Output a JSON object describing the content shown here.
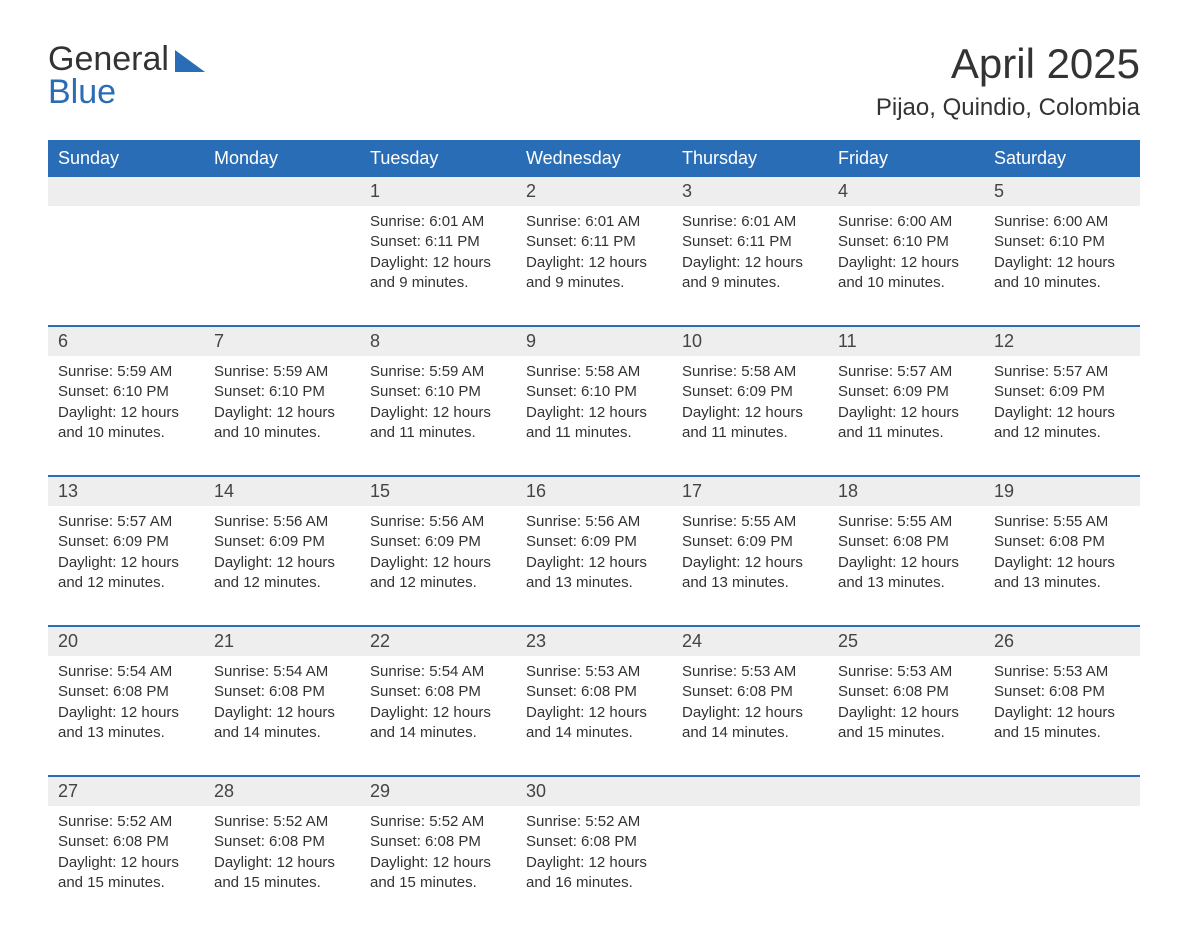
{
  "brand": {
    "word1": "General",
    "word2": "Blue",
    "accent_color": "#2a6db7"
  },
  "title": "April 2025",
  "location": "Pijao, Quindio, Colombia",
  "header_bg": "#2a6db7",
  "header_fg": "#ffffff",
  "daynum_bg": "#eeeeee",
  "week_border_color": "#2a6db7",
  "text_color": "#333333",
  "page_bg": "#ffffff",
  "day_labels": [
    "Sunday",
    "Monday",
    "Tuesday",
    "Wednesday",
    "Thursday",
    "Friday",
    "Saturday"
  ],
  "weeks": [
    {
      "days": [
        {
          "num": "",
          "sunrise": "",
          "sunset": "",
          "daylight1": "",
          "daylight2": ""
        },
        {
          "num": "",
          "sunrise": "",
          "sunset": "",
          "daylight1": "",
          "daylight2": ""
        },
        {
          "num": "1",
          "sunrise": "Sunrise: 6:01 AM",
          "sunset": "Sunset: 6:11 PM",
          "daylight1": "Daylight: 12 hours",
          "daylight2": "and 9 minutes."
        },
        {
          "num": "2",
          "sunrise": "Sunrise: 6:01 AM",
          "sunset": "Sunset: 6:11 PM",
          "daylight1": "Daylight: 12 hours",
          "daylight2": "and 9 minutes."
        },
        {
          "num": "3",
          "sunrise": "Sunrise: 6:01 AM",
          "sunset": "Sunset: 6:11 PM",
          "daylight1": "Daylight: 12 hours",
          "daylight2": "and 9 minutes."
        },
        {
          "num": "4",
          "sunrise": "Sunrise: 6:00 AM",
          "sunset": "Sunset: 6:10 PM",
          "daylight1": "Daylight: 12 hours",
          "daylight2": "and 10 minutes."
        },
        {
          "num": "5",
          "sunrise": "Sunrise: 6:00 AM",
          "sunset": "Sunset: 6:10 PM",
          "daylight1": "Daylight: 12 hours",
          "daylight2": "and 10 minutes."
        }
      ]
    },
    {
      "days": [
        {
          "num": "6",
          "sunrise": "Sunrise: 5:59 AM",
          "sunset": "Sunset: 6:10 PM",
          "daylight1": "Daylight: 12 hours",
          "daylight2": "and 10 minutes."
        },
        {
          "num": "7",
          "sunrise": "Sunrise: 5:59 AM",
          "sunset": "Sunset: 6:10 PM",
          "daylight1": "Daylight: 12 hours",
          "daylight2": "and 10 minutes."
        },
        {
          "num": "8",
          "sunrise": "Sunrise: 5:59 AM",
          "sunset": "Sunset: 6:10 PM",
          "daylight1": "Daylight: 12 hours",
          "daylight2": "and 11 minutes."
        },
        {
          "num": "9",
          "sunrise": "Sunrise: 5:58 AM",
          "sunset": "Sunset: 6:10 PM",
          "daylight1": "Daylight: 12 hours",
          "daylight2": "and 11 minutes."
        },
        {
          "num": "10",
          "sunrise": "Sunrise: 5:58 AM",
          "sunset": "Sunset: 6:09 PM",
          "daylight1": "Daylight: 12 hours",
          "daylight2": "and 11 minutes."
        },
        {
          "num": "11",
          "sunrise": "Sunrise: 5:57 AM",
          "sunset": "Sunset: 6:09 PM",
          "daylight1": "Daylight: 12 hours",
          "daylight2": "and 11 minutes."
        },
        {
          "num": "12",
          "sunrise": "Sunrise: 5:57 AM",
          "sunset": "Sunset: 6:09 PM",
          "daylight1": "Daylight: 12 hours",
          "daylight2": "and 12 minutes."
        }
      ]
    },
    {
      "days": [
        {
          "num": "13",
          "sunrise": "Sunrise: 5:57 AM",
          "sunset": "Sunset: 6:09 PM",
          "daylight1": "Daylight: 12 hours",
          "daylight2": "and 12 minutes."
        },
        {
          "num": "14",
          "sunrise": "Sunrise: 5:56 AM",
          "sunset": "Sunset: 6:09 PM",
          "daylight1": "Daylight: 12 hours",
          "daylight2": "and 12 minutes."
        },
        {
          "num": "15",
          "sunrise": "Sunrise: 5:56 AM",
          "sunset": "Sunset: 6:09 PM",
          "daylight1": "Daylight: 12 hours",
          "daylight2": "and 12 minutes."
        },
        {
          "num": "16",
          "sunrise": "Sunrise: 5:56 AM",
          "sunset": "Sunset: 6:09 PM",
          "daylight1": "Daylight: 12 hours",
          "daylight2": "and 13 minutes."
        },
        {
          "num": "17",
          "sunrise": "Sunrise: 5:55 AM",
          "sunset": "Sunset: 6:09 PM",
          "daylight1": "Daylight: 12 hours",
          "daylight2": "and 13 minutes."
        },
        {
          "num": "18",
          "sunrise": "Sunrise: 5:55 AM",
          "sunset": "Sunset: 6:08 PM",
          "daylight1": "Daylight: 12 hours",
          "daylight2": "and 13 minutes."
        },
        {
          "num": "19",
          "sunrise": "Sunrise: 5:55 AM",
          "sunset": "Sunset: 6:08 PM",
          "daylight1": "Daylight: 12 hours",
          "daylight2": "and 13 minutes."
        }
      ]
    },
    {
      "days": [
        {
          "num": "20",
          "sunrise": "Sunrise: 5:54 AM",
          "sunset": "Sunset: 6:08 PM",
          "daylight1": "Daylight: 12 hours",
          "daylight2": "and 13 minutes."
        },
        {
          "num": "21",
          "sunrise": "Sunrise: 5:54 AM",
          "sunset": "Sunset: 6:08 PM",
          "daylight1": "Daylight: 12 hours",
          "daylight2": "and 14 minutes."
        },
        {
          "num": "22",
          "sunrise": "Sunrise: 5:54 AM",
          "sunset": "Sunset: 6:08 PM",
          "daylight1": "Daylight: 12 hours",
          "daylight2": "and 14 minutes."
        },
        {
          "num": "23",
          "sunrise": "Sunrise: 5:53 AM",
          "sunset": "Sunset: 6:08 PM",
          "daylight1": "Daylight: 12 hours",
          "daylight2": "and 14 minutes."
        },
        {
          "num": "24",
          "sunrise": "Sunrise: 5:53 AM",
          "sunset": "Sunset: 6:08 PM",
          "daylight1": "Daylight: 12 hours",
          "daylight2": "and 14 minutes."
        },
        {
          "num": "25",
          "sunrise": "Sunrise: 5:53 AM",
          "sunset": "Sunset: 6:08 PM",
          "daylight1": "Daylight: 12 hours",
          "daylight2": "and 15 minutes."
        },
        {
          "num": "26",
          "sunrise": "Sunrise: 5:53 AM",
          "sunset": "Sunset: 6:08 PM",
          "daylight1": "Daylight: 12 hours",
          "daylight2": "and 15 minutes."
        }
      ]
    },
    {
      "days": [
        {
          "num": "27",
          "sunrise": "Sunrise: 5:52 AM",
          "sunset": "Sunset: 6:08 PM",
          "daylight1": "Daylight: 12 hours",
          "daylight2": "and 15 minutes."
        },
        {
          "num": "28",
          "sunrise": "Sunrise: 5:52 AM",
          "sunset": "Sunset: 6:08 PM",
          "daylight1": "Daylight: 12 hours",
          "daylight2": "and 15 minutes."
        },
        {
          "num": "29",
          "sunrise": "Sunrise: 5:52 AM",
          "sunset": "Sunset: 6:08 PM",
          "daylight1": "Daylight: 12 hours",
          "daylight2": "and 15 minutes."
        },
        {
          "num": "30",
          "sunrise": "Sunrise: 5:52 AM",
          "sunset": "Sunset: 6:08 PM",
          "daylight1": "Daylight: 12 hours",
          "daylight2": "and 16 minutes."
        },
        {
          "num": "",
          "sunrise": "",
          "sunset": "",
          "daylight1": "",
          "daylight2": ""
        },
        {
          "num": "",
          "sunrise": "",
          "sunset": "",
          "daylight1": "",
          "daylight2": ""
        },
        {
          "num": "",
          "sunrise": "",
          "sunset": "",
          "daylight1": "",
          "daylight2": ""
        }
      ]
    }
  ]
}
